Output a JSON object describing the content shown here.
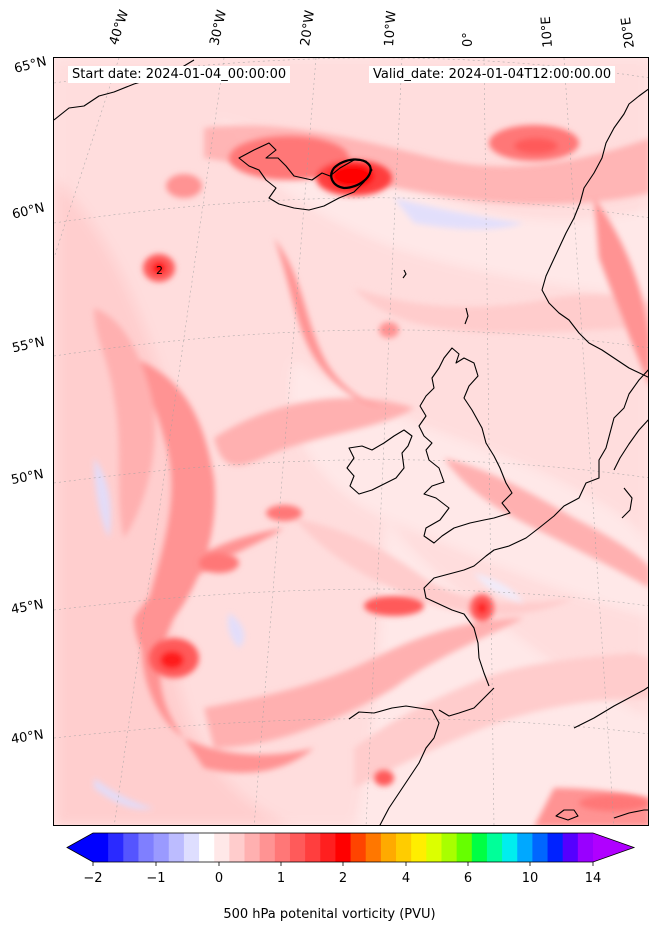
{
  "header": {
    "start_date": "Start date: 2024-01-04_00:00:00",
    "valid_date": "Valid_date: 2024-01-04T12:00:00.00"
  },
  "longitude_labels": [
    "40°W",
    "30°W",
    "20°W",
    "10°W",
    "0°",
    "10°E",
    "20°E"
  ],
  "latitude_labels": [
    "65°N",
    "60°N",
    "55°N",
    "50°N",
    "45°N",
    "40°N"
  ],
  "colorbar": {
    "title": "500 hPa potenital vorticity (PVU)",
    "tick_labels": [
      "−2",
      "−1",
      "0",
      "1",
      "2",
      "4",
      "6",
      "10",
      "14"
    ],
    "colors": [
      "#0000ff",
      "#2a2aff",
      "#5555ff",
      "#7f7fff",
      "#9a9aff",
      "#bcbcff",
      "#dedeff",
      "#ffffff",
      "#ffe8e8",
      "#ffcccc",
      "#ffb0b0",
      "#ff9393",
      "#ff7777",
      "#ff5a5a",
      "#ff3e3e",
      "#ff1f1f",
      "#ff0000",
      "#ff4400",
      "#ff7700",
      "#ffaa00",
      "#ffcc00",
      "#ffee00",
      "#dcff00",
      "#a8ff00",
      "#66ff00",
      "#00ff44",
      "#00ff99",
      "#00eeee",
      "#00a8ff",
      "#0066ff",
      "#0022ff",
      "#5500ff",
      "#9900ff"
    ],
    "extend_low": "#0000ff",
    "extend_high": "#b000ff"
  },
  "map": {
    "background_color": "#ffe8e8",
    "coastline_color": "#000000",
    "contour_label": "2"
  }
}
